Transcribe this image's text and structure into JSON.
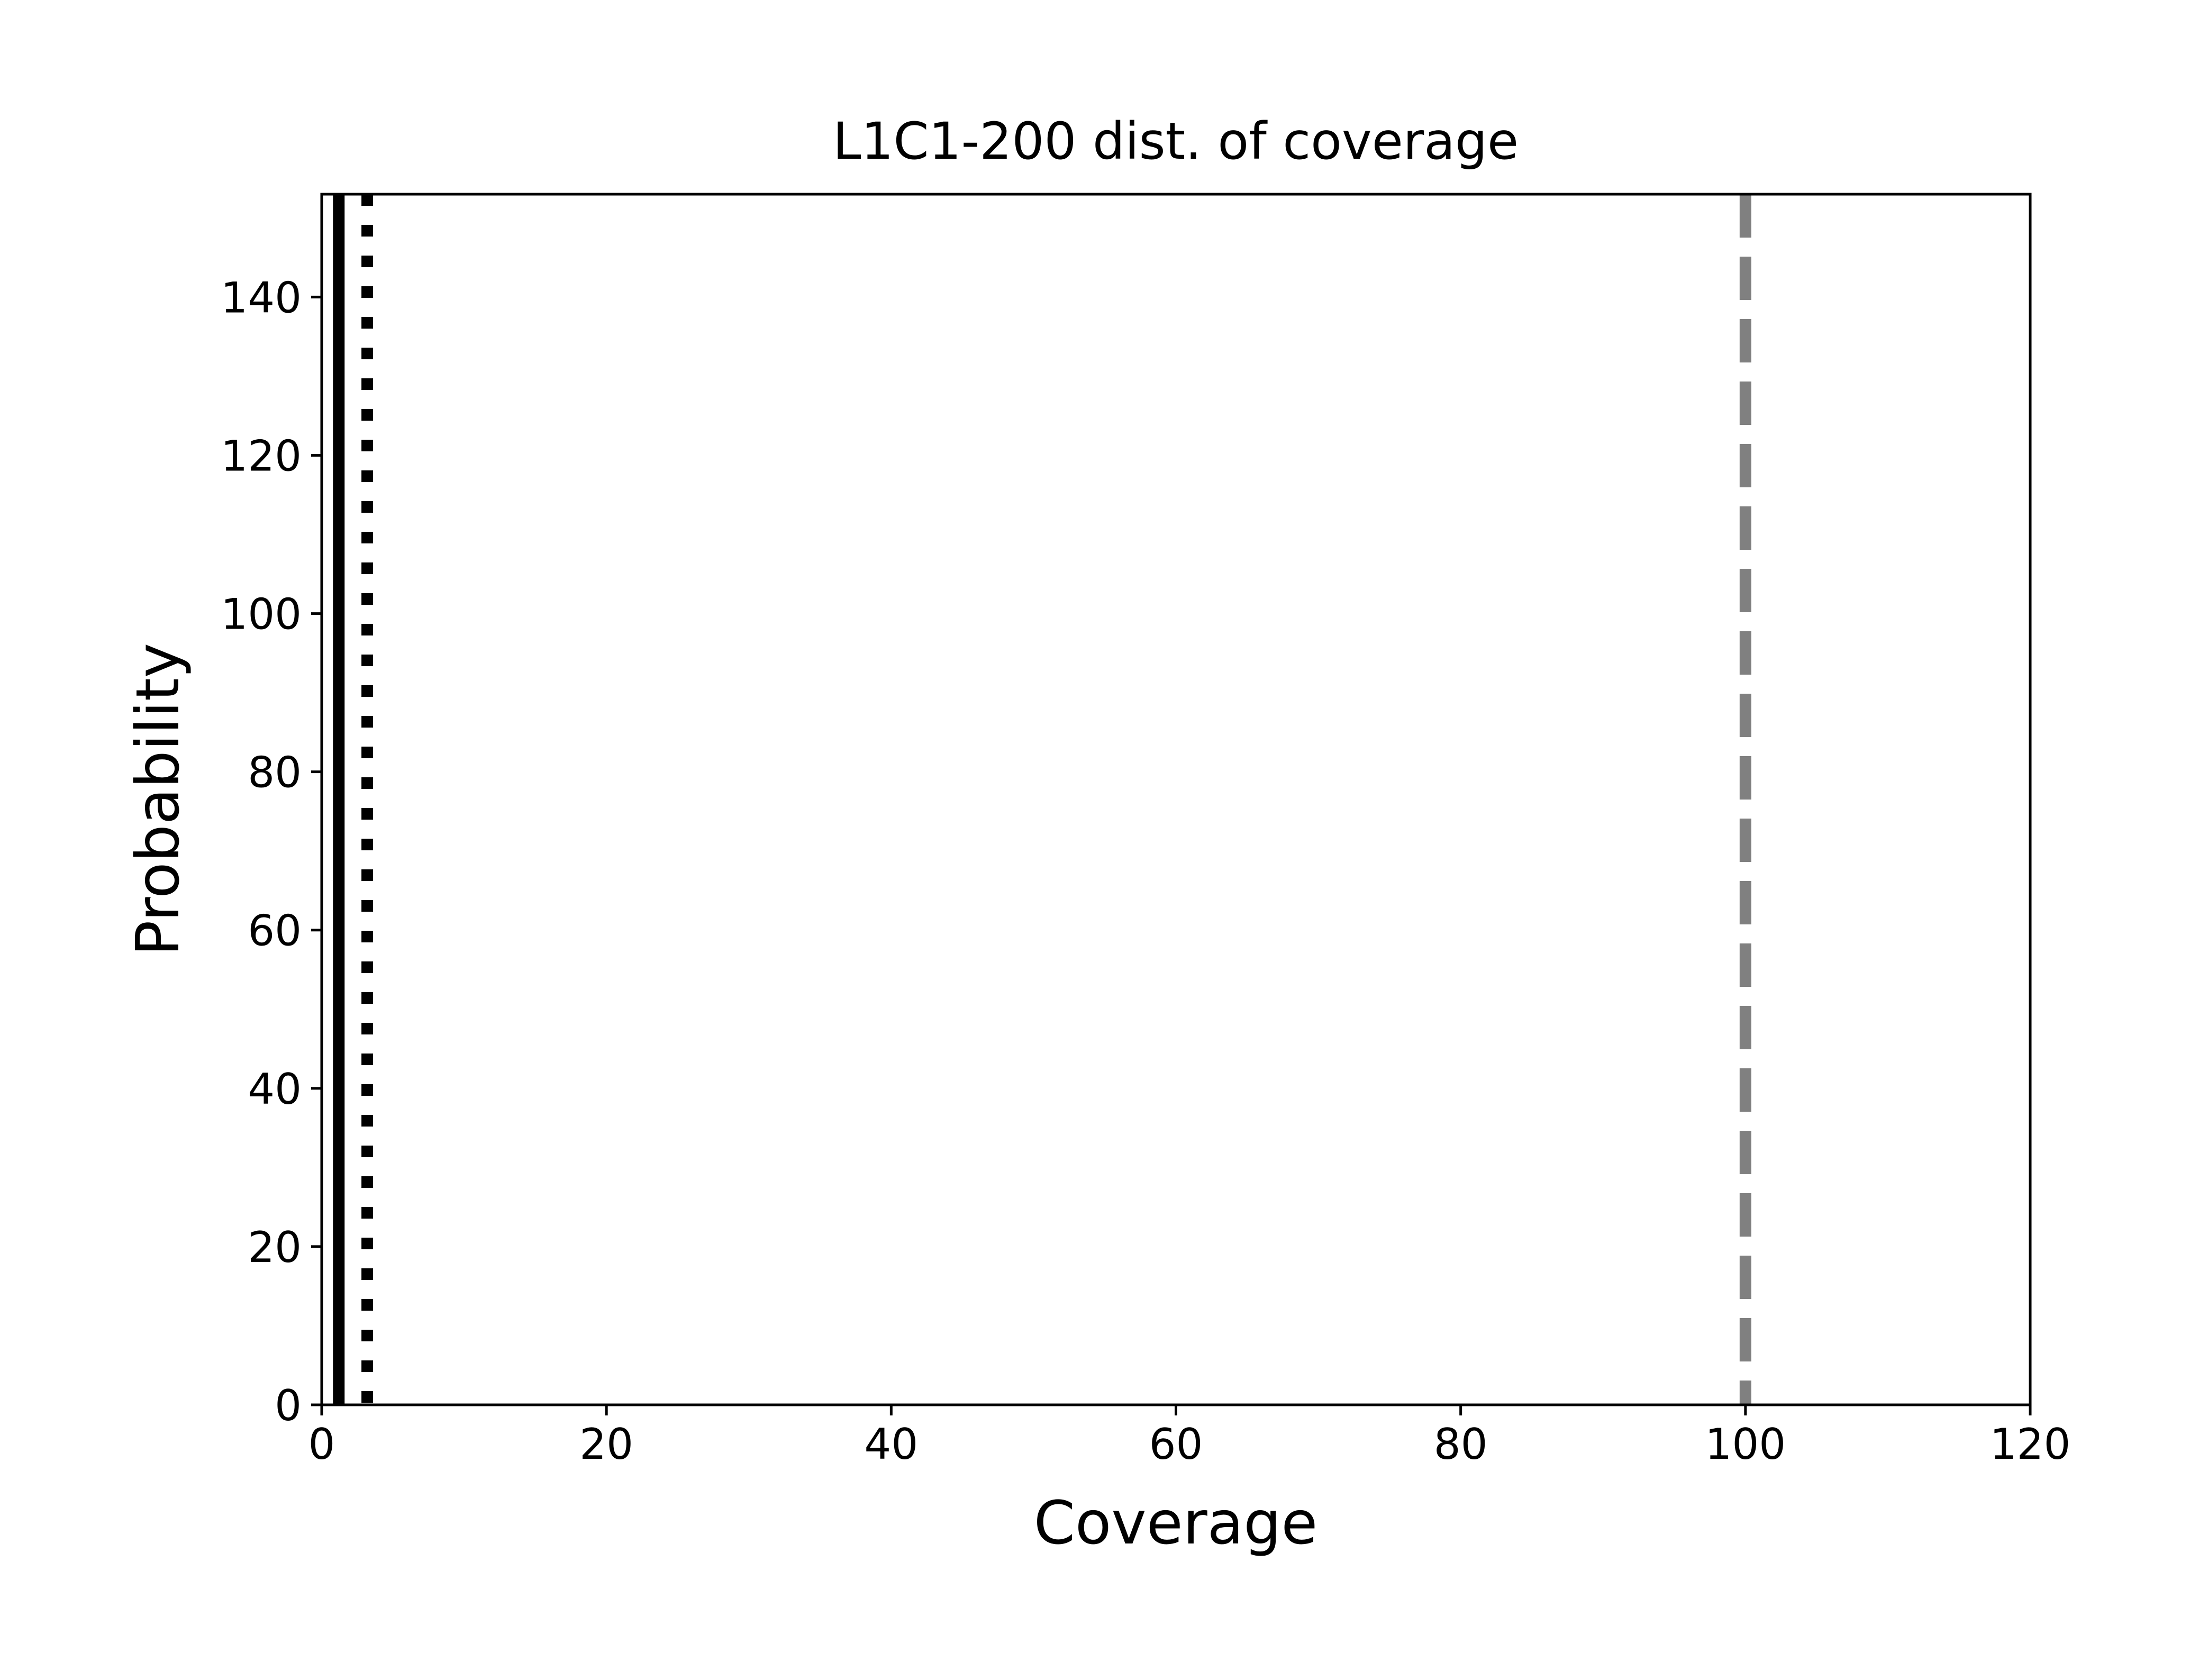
{
  "chart_data": {
    "type": "line",
    "title": "L1C1-200 dist. of coverage",
    "xlabel": "Coverage",
    "ylabel": "Probability",
    "xlim": [
      0,
      120
    ],
    "ylim": [
      0,
      153
    ],
    "xticks": [
      0,
      20,
      40,
      60,
      80,
      100,
      120
    ],
    "yticks": [
      0,
      20,
      40,
      60,
      80,
      100,
      120,
      140
    ],
    "xtick_labels": [
      "0",
      "20",
      "40",
      "60",
      "80",
      "100",
      "120"
    ],
    "ytick_labels": [
      "0",
      "20",
      "40",
      "60",
      "80",
      "100",
      "120",
      "140"
    ],
    "grid": false,
    "vlines": [
      {
        "x": 1.2,
        "style": "solid",
        "color": "#000000"
      },
      {
        "x": 3.2,
        "style": "dotted",
        "color": "#000000"
      },
      {
        "x": 100,
        "style": "dashed",
        "color": "#808080"
      }
    ]
  }
}
